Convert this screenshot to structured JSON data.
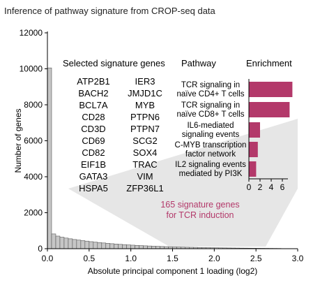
{
  "title": "Inference of pathway signature from CROP-seq data",
  "chart_data": [
    {
      "type": "bar",
      "chart": "histogram",
      "xlabel": "Absolute principal component 1 loading (log2)",
      "ylabel": "Number of genes",
      "xlim": [
        0,
        3.0
      ],
      "ylim": [
        0,
        12000
      ],
      "xticks": [
        "0.0",
        "0.5",
        "1.0",
        "1.5",
        "2.0",
        "2.5",
        "3.0"
      ],
      "yticks": [
        "0",
        "2000",
        "4000",
        "6000",
        "8000",
        "10000",
        "12000"
      ],
      "bin_width": 0.05,
      "values": [
        10050,
        820,
        700,
        640,
        590,
        550,
        510,
        480,
        450,
        420,
        390,
        365,
        340,
        318,
        296,
        276,
        258,
        241,
        225,
        210,
        196,
        183,
        171,
        160,
        150,
        140,
        131,
        122,
        114,
        107,
        100,
        93,
        87,
        81,
        76,
        71,
        66,
        62,
        58,
        54,
        50,
        47,
        44,
        41,
        38,
        35,
        32,
        30,
        28,
        26,
        24,
        22,
        20,
        18,
        16,
        14
      ],
      "bar_color": "#c6c6c6",
      "highlight_text": "165 signature genes\nfor TCR induction",
      "highlight_color": "#b3396a"
    },
    {
      "type": "bar",
      "orientation": "horizontal",
      "header": "Enrichment",
      "categories": [
        "TCR signaling in\nnaïve CD4+ T cells",
        "TCR signaling in\nnaïve CD8+ T cells",
        "IL6-mediated\nsignaling events",
        "C-MYB transcription\nfactor network",
        "IL2 signaling events\nmediated by PI3K"
      ],
      "values": [
        7.8,
        7.3,
        2.0,
        1.6,
        1.3
      ],
      "xlim": [
        0,
        8
      ],
      "xticks": [
        "0",
        "2",
        "4",
        "6"
      ],
      "bar_color": "#b3396a"
    }
  ],
  "genes_header": "Selected signature genes",
  "pathway_header": "Pathway",
  "genes_left": [
    "ATP2B1",
    "BACH2",
    "BCL7A",
    "CD28",
    "CD3D",
    "CD69",
    "CD82",
    "EIF1B",
    "GATA3",
    "HSPA5"
  ],
  "genes_right": [
    "IER3",
    "JMJD1C",
    "MYB",
    "PTPN6",
    "PTPN7",
    "SCG2",
    "SOX4",
    "TRAC",
    "VIM",
    "ZFP36L1"
  ]
}
